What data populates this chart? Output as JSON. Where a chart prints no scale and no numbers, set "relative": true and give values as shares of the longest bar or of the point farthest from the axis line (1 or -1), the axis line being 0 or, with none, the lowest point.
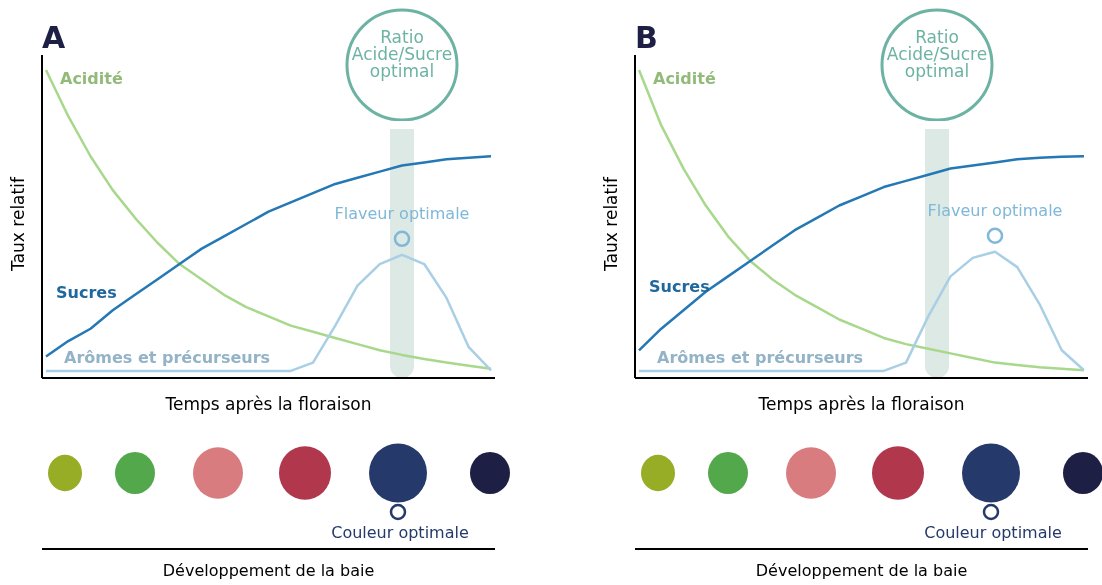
{
  "chart_data": [
    {
      "type": "line",
      "title": "A",
      "xlabel": "Temps après la floraison",
      "ylabel": "Taux relatif",
      "relative": true,
      "legend": false,
      "categories": [
        null,
        null,
        null,
        null,
        null,
        null,
        null,
        null,
        null,
        null,
        null,
        null,
        null,
        null,
        null,
        null,
        null,
        null,
        null,
        null,
        null
      ],
      "series": [
        {
          "name": "Acidité",
          "color": "#a8d88c",
          "values": [
            1,
            0.85,
            0.72,
            0.61,
            0.52,
            0.44,
            0.37,
            0.32,
            0.27,
            0.23,
            0.2,
            0.17,
            0.15,
            0.13,
            0.11,
            0.09,
            0.075,
            0.062,
            0.05,
            0.04,
            0.03
          ]
        },
        {
          "name": "Sucres",
          "color": "#2478b5",
          "values": [
            0.07,
            0.12,
            0.16,
            0.22,
            0.27,
            0.32,
            0.37,
            0.42,
            0.46,
            0.5,
            0.54,
            0.57,
            0.6,
            0.63,
            0.65,
            0.67,
            0.69,
            0.7,
            0.71,
            0.715,
            0.72
          ]
        },
        {
          "name": "Arômes et précurseurs",
          "color": "#a9cfe5",
          "values": [
            0.023,
            0.023,
            0.023,
            0.023,
            0.023,
            0.023,
            0.023,
            0.023,
            0.023,
            0.023,
            0.023,
            0.023,
            0.05,
            0.17,
            0.3,
            0.37,
            0.4,
            0.37,
            0.26,
            0.1,
            0.025
          ]
        }
      ],
      "annotations": [
        "Ratio Acide/Sucre optimal",
        "Flaveur optimale",
        "Couleur optimale",
        "Développement de la baie"
      ]
    },
    {
      "type": "line",
      "title": "B",
      "xlabel": "Temps après la floraison",
      "ylabel": "Taux relatif",
      "relative": true,
      "legend": false,
      "categories": [
        null,
        null,
        null,
        null,
        null,
        null,
        null,
        null,
        null,
        null,
        null,
        null,
        null,
        null,
        null,
        null,
        null,
        null,
        null,
        null,
        null
      ],
      "series": [
        {
          "name": "Acidité",
          "color": "#a8d88c",
          "values": [
            1,
            0.82,
            0.68,
            0.56,
            0.46,
            0.38,
            0.32,
            0.27,
            0.23,
            0.19,
            0.16,
            0.13,
            0.11,
            0.095,
            0.08,
            0.065,
            0.05,
            0.042,
            0.035,
            0.03,
            0.025
          ]
        },
        {
          "name": "Sucres",
          "color": "#2478b5",
          "values": [
            0.09,
            0.16,
            0.22,
            0.28,
            0.33,
            0.38,
            0.43,
            0.48,
            0.52,
            0.56,
            0.59,
            0.62,
            0.64,
            0.66,
            0.68,
            0.69,
            0.7,
            0.71,
            0.715,
            0.718,
            0.72
          ]
        },
        {
          "name": "Arômes et précurseurs",
          "color": "#a9cfe5",
          "values": [
            0.023,
            0.023,
            0.023,
            0.023,
            0.023,
            0.023,
            0.023,
            0.023,
            0.023,
            0.023,
            0.023,
            0.023,
            0.05,
            0.2,
            0.33,
            0.39,
            0.41,
            0.36,
            0.24,
            0.09,
            0.025
          ]
        }
      ],
      "annotations": [
        "Ratio Acide/Sucre optimal",
        "Flaveur optimale",
        "Couleur optimale",
        "Développement de la baie"
      ]
    }
  ]
}
